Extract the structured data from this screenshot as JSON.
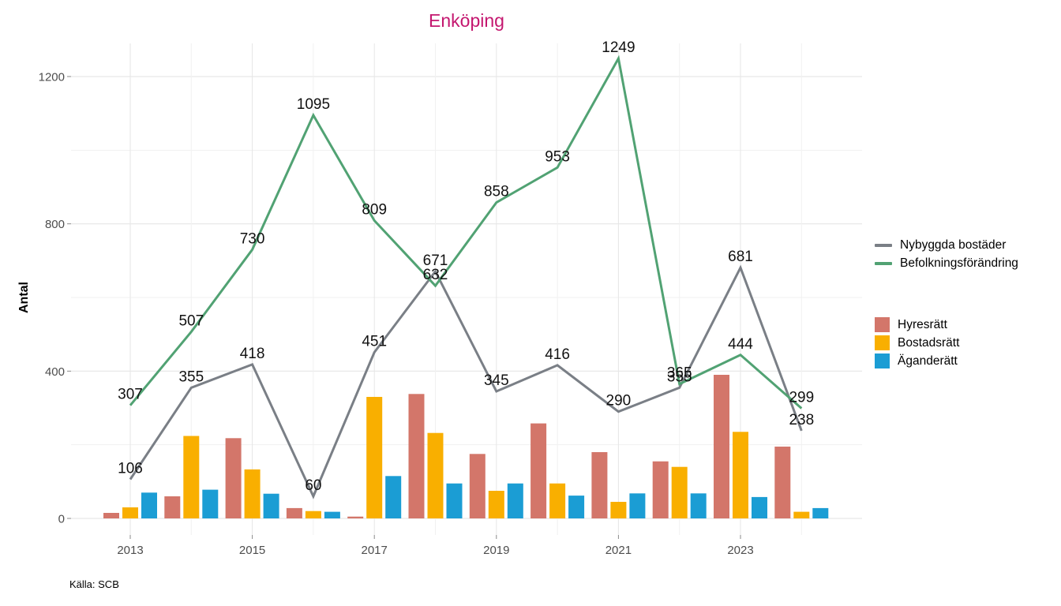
{
  "title": "Enköping",
  "y_axis_title": "Antal",
  "source": "Källa: SCB",
  "colors": {
    "title": "#C4176F",
    "nybyggda_bostader": "#7A7F86",
    "befolkningsforandring": "#51A273",
    "hyresratt": "#D3766A",
    "bostadsratt": "#F9AF00",
    "aganderatt": "#1B9DD4",
    "axis_text": "#4D4D4D",
    "label_text": "#111111",
    "grid_major": "#E6E6E6",
    "grid_minor": "#F1F1F1",
    "tick_mark": "#8A8A8A"
  },
  "legend": {
    "lines": [
      {
        "label": "Nybyggda bostäder",
        "color_key": "nybyggda_bostader"
      },
      {
        "label": "Befolkningsförändring",
        "color_key": "befolkningsforandring"
      }
    ],
    "bars": [
      {
        "label": "Hyresrätt",
        "color_key": "hyresratt"
      },
      {
        "label": "Bostadsrätt",
        "color_key": "bostadsratt"
      },
      {
        "label": "Äganderätt",
        "color_key": "aganderatt"
      }
    ]
  },
  "chart_data": {
    "type": "combo: grouped bar + line",
    "title": "Enköping",
    "ylabel": "Antal",
    "grid": "on",
    "legend_position": "right",
    "x": [
      2013,
      2014,
      2015,
      2016,
      2017,
      2018,
      2019,
      2020,
      2021,
      2022,
      2023,
      2024
    ],
    "x_labeled_years": [
      2013,
      2015,
      2017,
      2019,
      2021,
      2023
    ],
    "x_tick_labels": [
      "2013",
      "2015",
      "2017",
      "2019",
      "2021",
      "2023"
    ],
    "ylim": [
      0,
      1290
    ],
    "y_ticks": [
      0,
      400,
      800,
      1200
    ],
    "y_tick_labels": [
      "0",
      "400",
      "800",
      "1200"
    ],
    "y_minor_gridlines": [
      200,
      600,
      1000
    ],
    "line_series": [
      {
        "name": "Nybyggda bostäder",
        "color_key": "nybyggda_bostader",
        "values": [
          106,
          355,
          418,
          60,
          451,
          671,
          345,
          416,
          290,
          355,
          681,
          238
        ],
        "point_labels": true
      },
      {
        "name": "Befolkningsförändring",
        "color_key": "befolkningsforandring",
        "values": [
          307,
          507,
          730,
          1095,
          809,
          632,
          858,
          953,
          1249,
          365,
          444,
          299
        ],
        "point_labels": true
      }
    ],
    "bar_series": [
      {
        "name": "Hyresrätt",
        "color_key": "hyresratt",
        "values": [
          15,
          60,
          218,
          28,
          5,
          338,
          175,
          258,
          180,
          155,
          390,
          195
        ]
      },
      {
        "name": "Bostadsrätt",
        "color_key": "bostadsratt",
        "values": [
          30,
          224,
          133,
          20,
          330,
          232,
          75,
          95,
          45,
          140,
          235,
          18
        ]
      },
      {
        "name": "Äganderätt",
        "color_key": "aganderatt",
        "values": [
          70,
          78,
          67,
          18,
          115,
          95,
          95,
          62,
          68,
          68,
          58,
          28
        ]
      }
    ]
  }
}
